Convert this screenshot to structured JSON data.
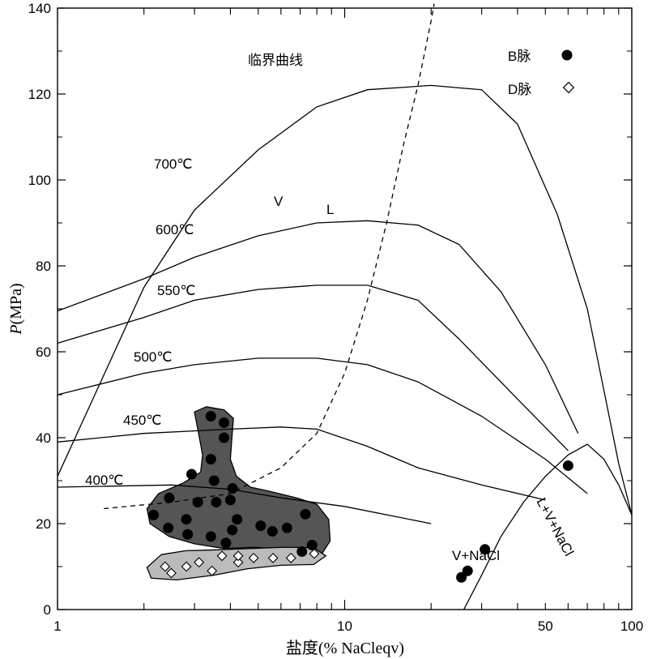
{
  "chart_data": {
    "type": "scatter",
    "x_scale": "log",
    "xlim": [
      1,
      100
    ],
    "ylim": [
      0,
      140
    ],
    "xlabel": "盐度(% NaCleqv)",
    "ylabel_italic": "P",
    "ylabel_rest": "(MPa)",
    "x_ticks": [
      1,
      10,
      50,
      100
    ],
    "y_ticks": [
      0,
      20,
      40,
      60,
      80,
      100,
      120,
      140
    ],
    "series": [
      {
        "name": "B脉",
        "marker": "filled-circle",
        "color": "#000000",
        "points": [
          [
            3.42,
            45
          ],
          [
            3.8,
            43.5
          ],
          [
            3.8,
            40
          ],
          [
            3.42,
            35
          ],
          [
            2.93,
            31.5
          ],
          [
            2.45,
            26
          ],
          [
            2.16,
            22
          ],
          [
            2.43,
            19
          ],
          [
            3.08,
            25
          ],
          [
            3.57,
            25
          ],
          [
            4.0,
            25.5
          ],
          [
            4.07,
            28.2
          ],
          [
            3.51,
            30
          ],
          [
            3.42,
            17
          ],
          [
            2.84,
            17.5
          ],
          [
            2.81,
            21
          ],
          [
            4.22,
            21
          ],
          [
            4.06,
            18.5
          ],
          [
            3.86,
            15.5
          ],
          [
            5.1,
            19.5
          ],
          [
            5.6,
            18.2
          ],
          [
            6.3,
            19
          ],
          [
            7.3,
            22.2
          ],
          [
            7.7,
            15
          ],
          [
            7.1,
            13.5
          ],
          [
            25.5,
            7.5
          ],
          [
            26.8,
            9
          ],
          [
            30.8,
            14
          ],
          [
            60,
            33.5
          ]
        ]
      },
      {
        "name": "D脉",
        "marker": "open-diamond",
        "color": "#000000",
        "points": [
          [
            2.37,
            10
          ],
          [
            2.49,
            8.5
          ],
          [
            2.81,
            10
          ],
          [
            3.11,
            11
          ],
          [
            3.45,
            9
          ],
          [
            3.74,
            12.5
          ],
          [
            4.26,
            11
          ],
          [
            4.26,
            12.5
          ],
          [
            4.82,
            12
          ],
          [
            5.63,
            12
          ],
          [
            6.5,
            12
          ],
          [
            7.84,
            13
          ]
        ]
      }
    ],
    "isotherms": [
      {
        "label": "400℃",
        "points": [
          [
            1,
            28.5
          ],
          [
            2.5,
            29
          ],
          [
            4,
            28
          ],
          [
            6,
            26
          ],
          [
            10,
            24
          ],
          [
            20,
            20
          ]
        ]
      },
      {
        "label": "450℃",
        "points": [
          [
            1,
            39
          ],
          [
            2,
            41
          ],
          [
            4,
            42
          ],
          [
            6,
            42.5
          ],
          [
            8,
            42
          ],
          [
            12,
            38
          ],
          [
            18,
            33
          ],
          [
            30,
            29
          ],
          [
            50,
            25.5
          ]
        ]
      },
      {
        "label": "500℃",
        "points": [
          [
            1,
            50
          ],
          [
            2,
            55
          ],
          [
            3,
            57
          ],
          [
            5,
            58.5
          ],
          [
            8,
            58.5
          ],
          [
            12,
            57
          ],
          [
            18,
            53
          ],
          [
            30,
            45
          ],
          [
            50,
            35
          ],
          [
            70,
            27
          ]
        ]
      },
      {
        "label": "550℃",
        "points": [
          [
            1,
            62
          ],
          [
            2,
            68
          ],
          [
            3,
            72
          ],
          [
            5,
            74.5
          ],
          [
            8,
            75.5
          ],
          [
            12,
            75.5
          ],
          [
            18,
            72
          ],
          [
            25,
            63
          ],
          [
            40,
            49
          ],
          [
            60,
            37
          ]
        ]
      },
      {
        "label": "600℃",
        "points": [
          [
            1,
            69.5
          ],
          [
            2,
            77
          ],
          [
            3,
            82
          ],
          [
            5,
            87
          ],
          [
            8,
            90
          ],
          [
            12,
            90.5
          ],
          [
            18,
            89.5
          ],
          [
            25,
            85
          ],
          [
            35,
            74
          ],
          [
            50,
            57
          ],
          [
            65,
            41
          ]
        ]
      },
      {
        "label": "700℃",
        "points": [
          [
            1,
            31
          ],
          [
            2,
            75
          ],
          [
            3,
            93
          ],
          [
            5,
            107
          ],
          [
            8,
            117
          ],
          [
            12,
            121
          ],
          [
            20,
            122
          ],
          [
            30,
            121
          ],
          [
            40,
            113
          ],
          [
            55,
            92
          ],
          [
            70,
            70
          ],
          [
            80,
            51
          ],
          [
            90,
            34
          ],
          [
            100,
            22
          ]
        ]
      }
    ],
    "halite_saturation": [
      [
        26,
        0
      ],
      [
        30,
        8
      ],
      [
        35,
        17
      ],
      [
        42,
        25
      ],
      [
        50,
        31
      ],
      [
        60,
        36
      ],
      [
        70,
        38.5
      ],
      [
        80,
        35
      ],
      [
        90,
        29
      ],
      [
        100,
        22
      ]
    ],
    "critical_curve": [
      [
        1.45,
        23.5
      ],
      [
        2.5,
        25
      ],
      [
        4,
        27
      ],
      [
        6,
        33
      ],
      [
        8,
        41
      ],
      [
        10,
        55
      ],
      [
        12,
        72
      ],
      [
        14,
        90
      ],
      [
        16,
        108
      ],
      [
        18,
        122
      ],
      [
        20,
        137
      ],
      [
        20.5,
        141
      ]
    ],
    "annotations": {
      "critical": "临界曲线",
      "v": "V",
      "l": "L",
      "v_nacl": "V+NaCl",
      "l_v_nacl": "L+V+NaCl"
    },
    "regions": [
      {
        "name": "B脉 field",
        "fill": "#555555"
      },
      {
        "name": "D脉 field",
        "fill": "#bbbbbb"
      }
    ],
    "legend": {
      "position": "top-right"
    }
  }
}
